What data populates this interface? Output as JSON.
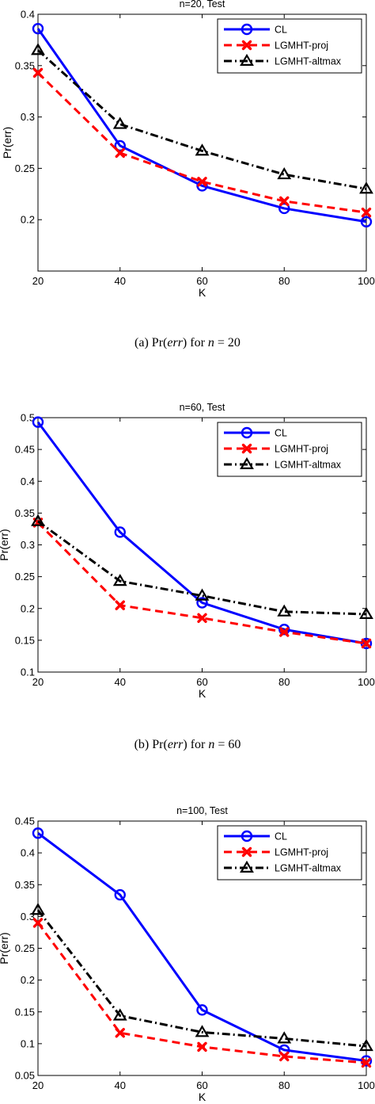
{
  "series_styles": [
    {
      "name": "CL",
      "color": "#0000ff",
      "dash": "",
      "marker": "circle"
    },
    {
      "name": "LGMHT-proj",
      "color": "#ff0000",
      "dash": "10,6",
      "marker": "x"
    },
    {
      "name": "LGMHT-altmax",
      "color": "#000000",
      "dash": "10,4,2,4",
      "marker": "triangle"
    }
  ],
  "chart_data": [
    {
      "type": "line",
      "title": "n=20, Test",
      "xlabel": "K",
      "ylabel": "Pr(err)",
      "xlim": [
        20,
        100
      ],
      "ylim": [
        0.15,
        0.4
      ],
      "xticks": [
        20,
        40,
        60,
        80,
        100
      ],
      "xtick_labels": [
        "20",
        "40",
        "60",
        "80",
        "100"
      ],
      "yticks": [
        0.2,
        0.25,
        0.3,
        0.35,
        0.4
      ],
      "ytick_labels": [
        "0.2",
        "0.25",
        "0.3",
        "0.35",
        "0.4"
      ],
      "x": [
        20,
        40,
        60,
        80,
        100
      ],
      "legend_position": "top-right",
      "series": [
        {
          "name": "CL",
          "values": [
            0.386,
            0.272,
            0.233,
            0.211,
            0.198
          ]
        },
        {
          "name": "LGMHT-proj",
          "values": [
            0.343,
            0.265,
            0.237,
            0.218,
            0.207
          ]
        },
        {
          "name": "LGMHT-altmax",
          "values": [
            0.365,
            0.293,
            0.267,
            0.244,
            0.23
          ]
        }
      ],
      "caption": {
        "prefix": "(a) Pr(",
        "var": "err",
        "mid": ") for ",
        "n": "n",
        "suffix": " = 20"
      }
    },
    {
      "type": "line",
      "title": "n=60, Test",
      "xlabel": "K",
      "ylabel": "Pr(err)",
      "xlim": [
        20,
        100
      ],
      "ylim": [
        0.1,
        0.5
      ],
      "xticks": [
        20,
        40,
        60,
        80,
        100
      ],
      "xtick_labels": [
        "20",
        "40",
        "60",
        "80",
        "100"
      ],
      "yticks": [
        0.1,
        0.15,
        0.2,
        0.25,
        0.3,
        0.35,
        0.4,
        0.45,
        0.5
      ],
      "ytick_labels": [
        "0.1",
        "0.15",
        "0.2",
        "0.25",
        "0.3",
        "0.35",
        "0.4",
        "0.45",
        "0.5"
      ],
      "x": [
        20,
        40,
        60,
        80,
        100
      ],
      "legend_position": "top-right",
      "series": [
        {
          "name": "CL",
          "values": [
            0.493,
            0.32,
            0.209,
            0.167,
            0.145
          ]
        },
        {
          "name": "LGMHT-proj",
          "values": [
            0.335,
            0.205,
            0.185,
            0.163,
            0.145
          ]
        },
        {
          "name": "LGMHT-altmax",
          "values": [
            0.337,
            0.243,
            0.22,
            0.195,
            0.191
          ]
        }
      ],
      "caption": {
        "prefix": "(b) Pr(",
        "var": "err",
        "mid": ") for ",
        "n": "n",
        "suffix": " = 60"
      }
    },
    {
      "type": "line",
      "title": "n=100, Test",
      "xlabel": "K",
      "ylabel": "Pr(err)",
      "xlim": [
        20,
        100
      ],
      "ylim": [
        0.05,
        0.45
      ],
      "xticks": [
        20,
        40,
        60,
        80,
        100
      ],
      "xtick_labels": [
        "20",
        "40",
        "60",
        "80",
        "100"
      ],
      "yticks": [
        0.05,
        0.1,
        0.15,
        0.2,
        0.25,
        0.3,
        0.35,
        0.4,
        0.45
      ],
      "ytick_labels": [
        "0.05",
        "0.1",
        "0.15",
        "0.2",
        "0.25",
        "0.3",
        "0.35",
        "0.4",
        "0.45"
      ],
      "x": [
        20,
        40,
        60,
        80,
        100
      ],
      "legend_position": "top-right",
      "series": [
        {
          "name": "CL",
          "values": [
            0.431,
            0.334,
            0.153,
            0.09,
            0.073
          ]
        },
        {
          "name": "LGMHT-proj",
          "values": [
            0.29,
            0.117,
            0.095,
            0.08,
            0.07
          ]
        },
        {
          "name": "LGMHT-altmax",
          "values": [
            0.31,
            0.144,
            0.118,
            0.108,
            0.096
          ]
        }
      ]
    }
  ]
}
